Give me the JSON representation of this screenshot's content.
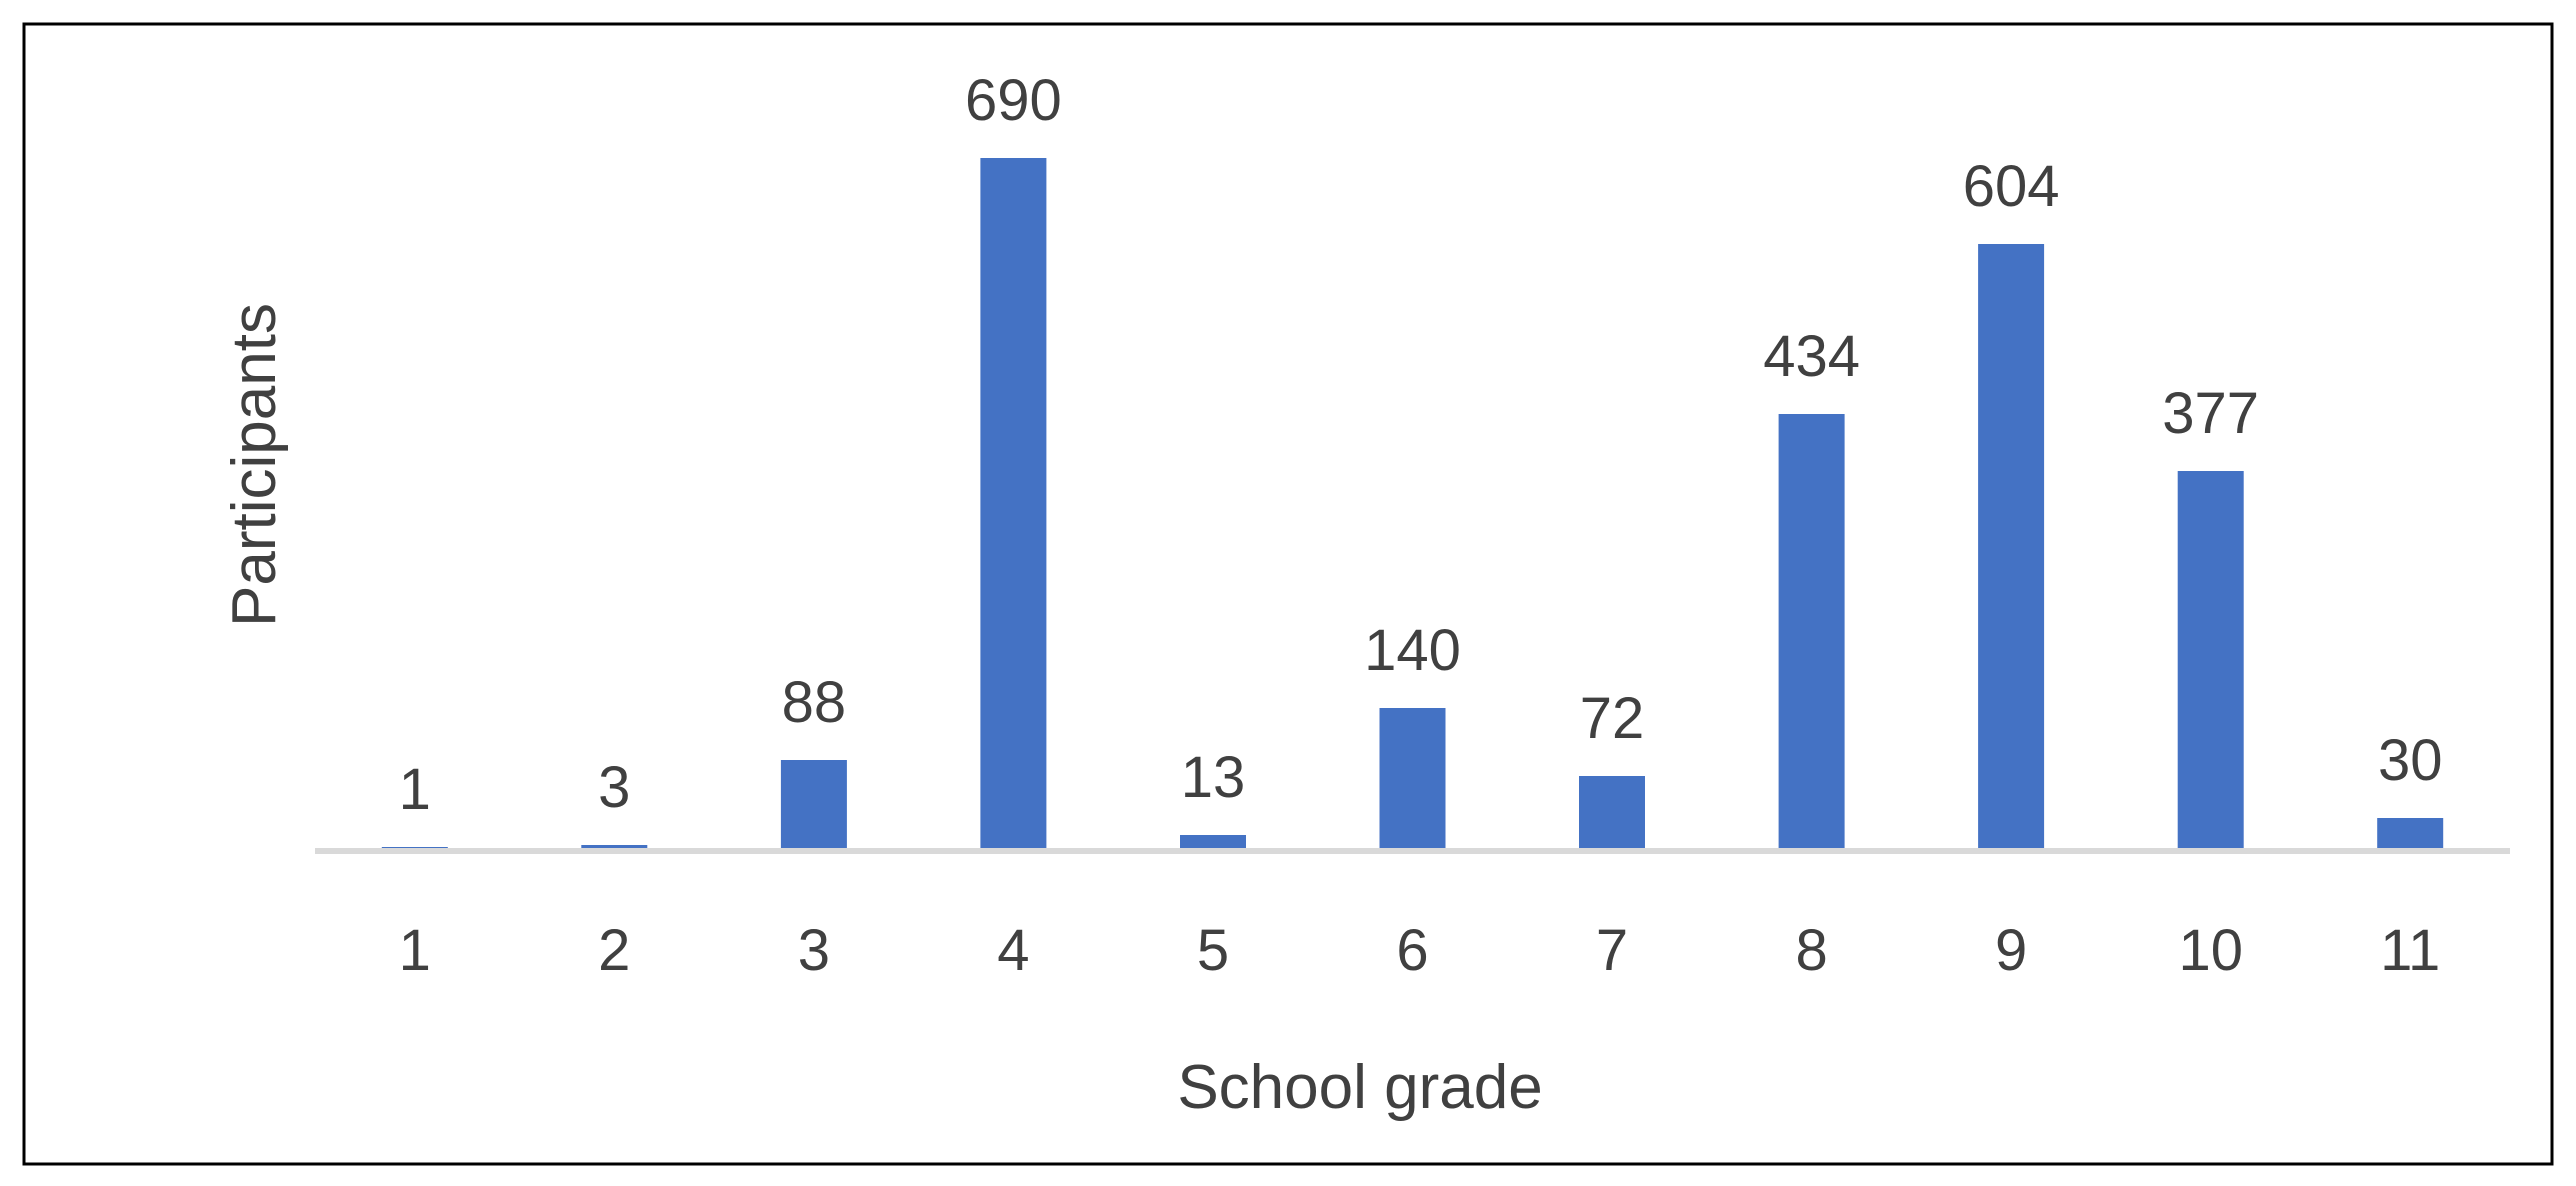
{
  "colors": {
    "bar": "#4472C4",
    "axis_line": "#D9D9D9",
    "text": "#404040",
    "border": "#000000",
    "background": "#FFFFFF"
  },
  "chart_data": {
    "type": "bar",
    "categories": [
      "1",
      "2",
      "3",
      "4",
      "5",
      "6",
      "7",
      "8",
      "9",
      "10",
      "11"
    ],
    "series": [
      {
        "values": [
          1,
          3,
          88,
          690,
          13,
          140,
          72,
          434,
          604,
          377,
          30
        ]
      }
    ],
    "data_labels": [
      "1",
      "3",
      "88",
      "690",
      "13",
      "140",
      "72",
      "434",
      "604",
      "377",
      "30"
    ],
    "title": "",
    "xlabel": "School grade",
    "ylabel": "Participants",
    "ylim": [
      0,
      760
    ],
    "grid": false,
    "legend": "none",
    "y_axis_visible": false
  }
}
